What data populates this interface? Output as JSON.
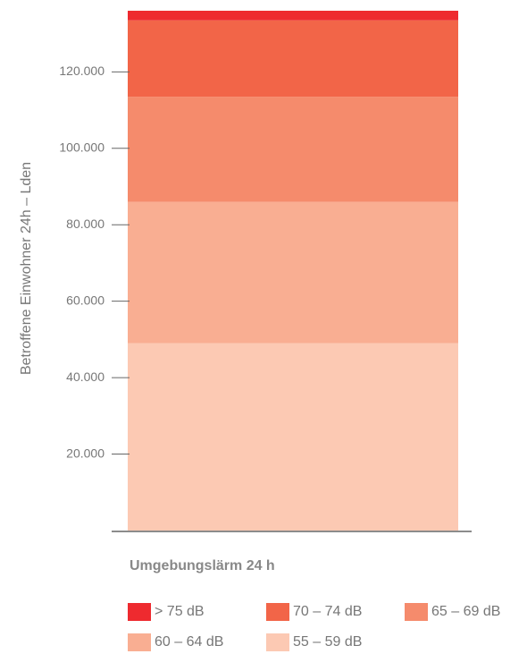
{
  "chart_data": {
    "type": "stacked_bar",
    "y_label": "Betroffene Einwohner 24h – Lden",
    "categories": [
      "Umgebungslärm 24 h"
    ],
    "series": [
      {
        "name": "> 75 dB",
        "color": "#ee2a2f",
        "values": [
          2500
        ]
      },
      {
        "name": "70 – 74 dB",
        "color": "#f26548",
        "values": [
          20000
        ]
      },
      {
        "name": "65 – 69 dB",
        "color": "#f58b6c",
        "values": [
          27500
        ]
      },
      {
        "name": "60 – 64 dB",
        "color": "#f9ae92",
        "values": [
          37000
        ]
      },
      {
        "name": "55 – 59 dB",
        "color": "#fcc9b3",
        "values": [
          49000
        ]
      }
    ],
    "ylim": [
      0,
      136000
    ],
    "yticks": [
      {
        "value": 20000,
        "label": "20.000"
      },
      {
        "value": 40000,
        "label": "40.000"
      },
      {
        "value": 60000,
        "label": "60.000"
      },
      {
        "value": 80000,
        "label": "80.000"
      },
      {
        "value": 100000,
        "label": "100.000"
      },
      {
        "value": 120000,
        "label": "120.000"
      }
    ]
  }
}
